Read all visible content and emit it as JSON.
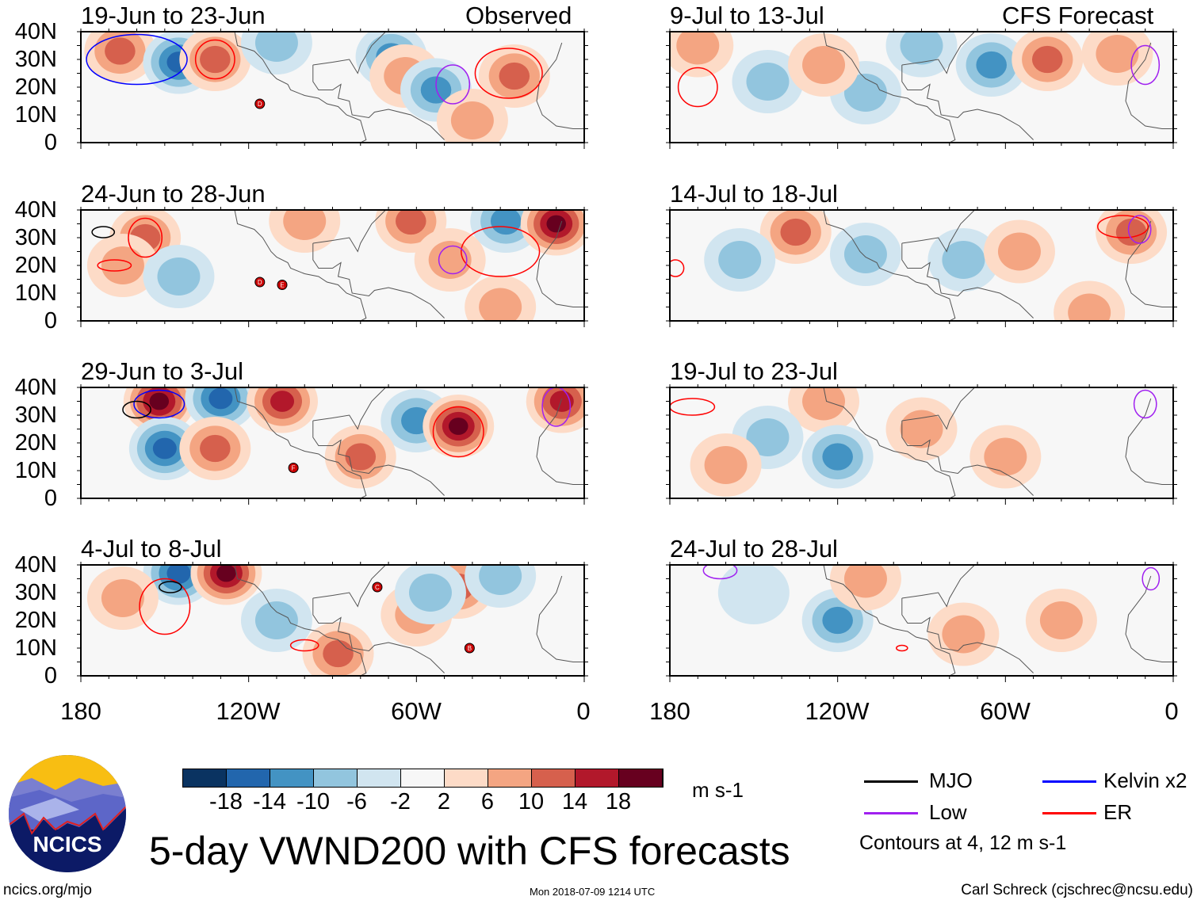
{
  "title": "5-day VWND200 with CFS forecasts",
  "left_header": "Observed",
  "right_header": "CFS Forecast",
  "units": "m s-1",
  "lat_labels": [
    "40N",
    "30N",
    "20N",
    "10N",
    "0"
  ],
  "lon_labels": [
    "180",
    "120W",
    "60W",
    "0"
  ],
  "colorbar": {
    "colors": [
      "#0a3361",
      "#2266ad",
      "#4393c3",
      "#92c5de",
      "#d1e5f0",
      "#f7f7f7",
      "#fddbc7",
      "#f4a582",
      "#d6604d",
      "#b2182b",
      "#67001f"
    ],
    "labels": [
      "-18",
      "-14",
      "-10",
      "-6",
      "-2",
      "2",
      "6",
      "10",
      "14",
      "18"
    ]
  },
  "legend": {
    "items": [
      {
        "label": "MJO",
        "color": "#000000"
      },
      {
        "label": "Kelvin x2",
        "color": "#0000ff"
      },
      {
        "label": "Low",
        "color": "#a020f0"
      },
      {
        "label": "ER",
        "color": "#ff0000"
      }
    ],
    "note": "Contours at 4, 12 m s-1"
  },
  "logo_text": "NCICS",
  "footer": {
    "url": "ncics.org/mjo",
    "timestamp": "Mon 2018-07-09 1214 UTC",
    "author": "Carl Schreck (cjschrec@ncsu.edu)"
  },
  "panels": [
    {
      "title": "19-Jun to 23-Jun",
      "anom": [
        {
          "lon": -166,
          "lat": 33,
          "v": 10
        },
        {
          "lon": -145,
          "lat": 29,
          "v": -14
        },
        {
          "lon": -132,
          "lat": 30,
          "v": 10
        },
        {
          "lon": -69,
          "lat": 31,
          "v": -10
        },
        {
          "lon": -64,
          "lat": 24,
          "v": 6
        },
        {
          "lon": -53,
          "lat": 19,
          "v": -10
        },
        {
          "lon": -25,
          "lat": 24,
          "v": 10
        },
        {
          "lon": -110,
          "lat": 36,
          "v": -6
        },
        {
          "lon": -40,
          "lat": 8,
          "v": 6
        }
      ],
      "contours": [
        {
          "lon": -160,
          "lat": 30,
          "rx": 18,
          "ry": 9,
          "c": "blue"
        },
        {
          "lon": -132,
          "lat": 30,
          "rx": 7,
          "ry": 7,
          "c": "red"
        },
        {
          "lon": -27,
          "lat": 25,
          "rx": 12,
          "ry": 9,
          "c": "red"
        },
        {
          "lon": -47,
          "lat": 21,
          "rx": 6,
          "ry": 7,
          "c": "purple"
        }
      ],
      "storms": [
        {
          "lon": -116,
          "lat": 14,
          "id": "D"
        }
      ]
    },
    {
      "title": "24-Jun to 28-Jun",
      "anom": [
        {
          "lon": -157,
          "lat": 30,
          "v": 10
        },
        {
          "lon": -100,
          "lat": 36,
          "v": 6
        },
        {
          "lon": -62,
          "lat": 36,
          "v": 10
        },
        {
          "lon": -28,
          "lat": 36,
          "v": -10
        },
        {
          "lon": -10,
          "lat": 35,
          "v": 18
        },
        {
          "lon": -48,
          "lat": 22,
          "v": 6
        },
        {
          "lon": -165,
          "lat": 20,
          "v": 6
        },
        {
          "lon": -145,
          "lat": 16,
          "v": -6
        },
        {
          "lon": -30,
          "lat": 5,
          "v": 6
        }
      ],
      "contours": [
        {
          "lon": -157,
          "lat": 30,
          "rx": 6,
          "ry": 7,
          "c": "red"
        },
        {
          "lon": -30,
          "lat": 25,
          "rx": 14,
          "ry": 9,
          "c": "red"
        },
        {
          "lon": -47,
          "lat": 22,
          "rx": 5,
          "ry": 5,
          "c": "purple"
        },
        {
          "lon": -172,
          "lat": 32,
          "rx": 4,
          "ry": 2,
          "c": "black"
        },
        {
          "lon": -168,
          "lat": 20,
          "rx": 6,
          "ry": 2,
          "c": "red"
        }
      ],
      "storms": [
        {
          "lon": -116,
          "lat": 14,
          "id": "D"
        },
        {
          "lon": -108,
          "lat": 13,
          "id": "E"
        }
      ]
    },
    {
      "title": "29-Jun to 3-Jul",
      "anom": [
        {
          "lon": -152,
          "lat": 35,
          "v": 18
        },
        {
          "lon": -130,
          "lat": 36,
          "v": -14
        },
        {
          "lon": -108,
          "lat": 35,
          "v": 14
        },
        {
          "lon": -150,
          "lat": 18,
          "v": -14
        },
        {
          "lon": -132,
          "lat": 18,
          "v": 10
        },
        {
          "lon": -60,
          "lat": 28,
          "v": -10
        },
        {
          "lon": -45,
          "lat": 26,
          "v": 18
        },
        {
          "lon": -8,
          "lat": 35,
          "v": 14
        },
        {
          "lon": -80,
          "lat": 15,
          "v": 10
        }
      ],
      "contours": [
        {
          "lon": -45,
          "lat": 24,
          "rx": 9,
          "ry": 9,
          "c": "red"
        },
        {
          "lon": -152,
          "lat": 34,
          "rx": 9,
          "ry": 5,
          "c": "blue"
        },
        {
          "lon": -160,
          "lat": 32,
          "rx": 5,
          "ry": 3,
          "c": "black"
        },
        {
          "lon": -10,
          "lat": 33,
          "rx": 5,
          "ry": 7,
          "c": "purple"
        }
      ],
      "storms": [
        {
          "lon": -104,
          "lat": 11,
          "id": "F"
        }
      ]
    },
    {
      "title": "4-Jul to 8-Jul",
      "anom": [
        {
          "lon": -145,
          "lat": 37,
          "v": -14
        },
        {
          "lon": -128,
          "lat": 37,
          "v": 18
        },
        {
          "lon": -88,
          "lat": 8,
          "v": 10
        },
        {
          "lon": -60,
          "lat": 22,
          "v": 6
        },
        {
          "lon": -45,
          "lat": 32,
          "v": 10
        },
        {
          "lon": -55,
          "lat": 30,
          "v": -6
        },
        {
          "lon": -165,
          "lat": 28,
          "v": 6
        },
        {
          "lon": -110,
          "lat": 20,
          "v": -6
        },
        {
          "lon": -30,
          "lat": 36,
          "v": -6
        }
      ],
      "contours": [
        {
          "lon": -150,
          "lat": 25,
          "rx": 9,
          "ry": 10,
          "c": "red"
        },
        {
          "lon": -148,
          "lat": 32,
          "rx": 4,
          "ry": 2,
          "c": "black"
        },
        {
          "lon": -100,
          "lat": 11,
          "rx": 5,
          "ry": 2,
          "c": "red"
        }
      ],
      "storms": [
        {
          "lon": -74,
          "lat": 32,
          "id": "C"
        },
        {
          "lon": -41,
          "lat": 10,
          "id": "B"
        }
      ]
    },
    {
      "title": "9-Jul to 13-Jul",
      "anom": [
        {
          "lon": -170,
          "lat": 35,
          "v": 6
        },
        {
          "lon": -145,
          "lat": 22,
          "v": -6
        },
        {
          "lon": -110,
          "lat": 18,
          "v": -6
        },
        {
          "lon": -65,
          "lat": 28,
          "v": -10
        },
        {
          "lon": -45,
          "lat": 30,
          "v": 10
        },
        {
          "lon": -20,
          "lat": 32,
          "v": 6
        },
        {
          "lon": -125,
          "lat": 28,
          "v": 6
        },
        {
          "lon": -90,
          "lat": 35,
          "v": -6
        }
      ],
      "contours": [
        {
          "lon": -170,
          "lat": 20,
          "rx": 7,
          "ry": 7,
          "c": "red"
        },
        {
          "lon": -10,
          "lat": 28,
          "rx": 5,
          "ry": 7,
          "c": "purple"
        }
      ],
      "storms": []
    },
    {
      "title": "14-Jul to 18-Jul",
      "anom": [
        {
          "lon": -135,
          "lat": 32,
          "v": 10
        },
        {
          "lon": -155,
          "lat": 22,
          "v": -6
        },
        {
          "lon": -110,
          "lat": 24,
          "v": -6
        },
        {
          "lon": -75,
          "lat": 22,
          "v": -6
        },
        {
          "lon": -55,
          "lat": 25,
          "v": 6
        },
        {
          "lon": -15,
          "lat": 32,
          "v": 10
        },
        {
          "lon": -30,
          "lat": 3,
          "v": 6
        }
      ],
      "contours": [
        {
          "lon": -18,
          "lat": 34,
          "rx": 9,
          "ry": 4,
          "c": "red"
        },
        {
          "lon": -178,
          "lat": 19,
          "rx": 3,
          "ry": 3,
          "c": "red"
        },
        {
          "lon": -12,
          "lat": 33,
          "rx": 4,
          "ry": 5,
          "c": "purple"
        }
      ],
      "storms": []
    },
    {
      "title": "19-Jul to 23-Jul",
      "anom": [
        {
          "lon": -125,
          "lat": 35,
          "v": 6
        },
        {
          "lon": -145,
          "lat": 22,
          "v": -6
        },
        {
          "lon": -120,
          "lat": 15,
          "v": -10
        },
        {
          "lon": -160,
          "lat": 12,
          "v": 6
        },
        {
          "lon": -90,
          "lat": 25,
          "v": 6
        },
        {
          "lon": -60,
          "lat": 15,
          "v": 6
        }
      ],
      "contours": [
        {
          "lon": -172,
          "lat": 33,
          "rx": 8,
          "ry": 3,
          "c": "red"
        },
        {
          "lon": -10,
          "lat": 34,
          "rx": 4,
          "ry": 5,
          "c": "purple"
        }
      ],
      "storms": []
    },
    {
      "title": "24-Jul to 28-Jul",
      "anom": [
        {
          "lon": -120,
          "lat": 20,
          "v": -10
        },
        {
          "lon": -110,
          "lat": 35,
          "v": 6
        },
        {
          "lon": -150,
          "lat": 30,
          "v": -2
        },
        {
          "lon": -75,
          "lat": 15,
          "v": 6
        },
        {
          "lon": -40,
          "lat": 20,
          "v": 6
        }
      ],
      "contours": [
        {
          "lon": -162,
          "lat": 38,
          "rx": 6,
          "ry": 3,
          "c": "purple"
        },
        {
          "lon": -97,
          "lat": 10,
          "rx": 2,
          "ry": 1,
          "c": "red"
        },
        {
          "lon": -8,
          "lat": 35,
          "rx": 3,
          "ry": 4,
          "c": "purple"
        }
      ],
      "storms": []
    }
  ]
}
